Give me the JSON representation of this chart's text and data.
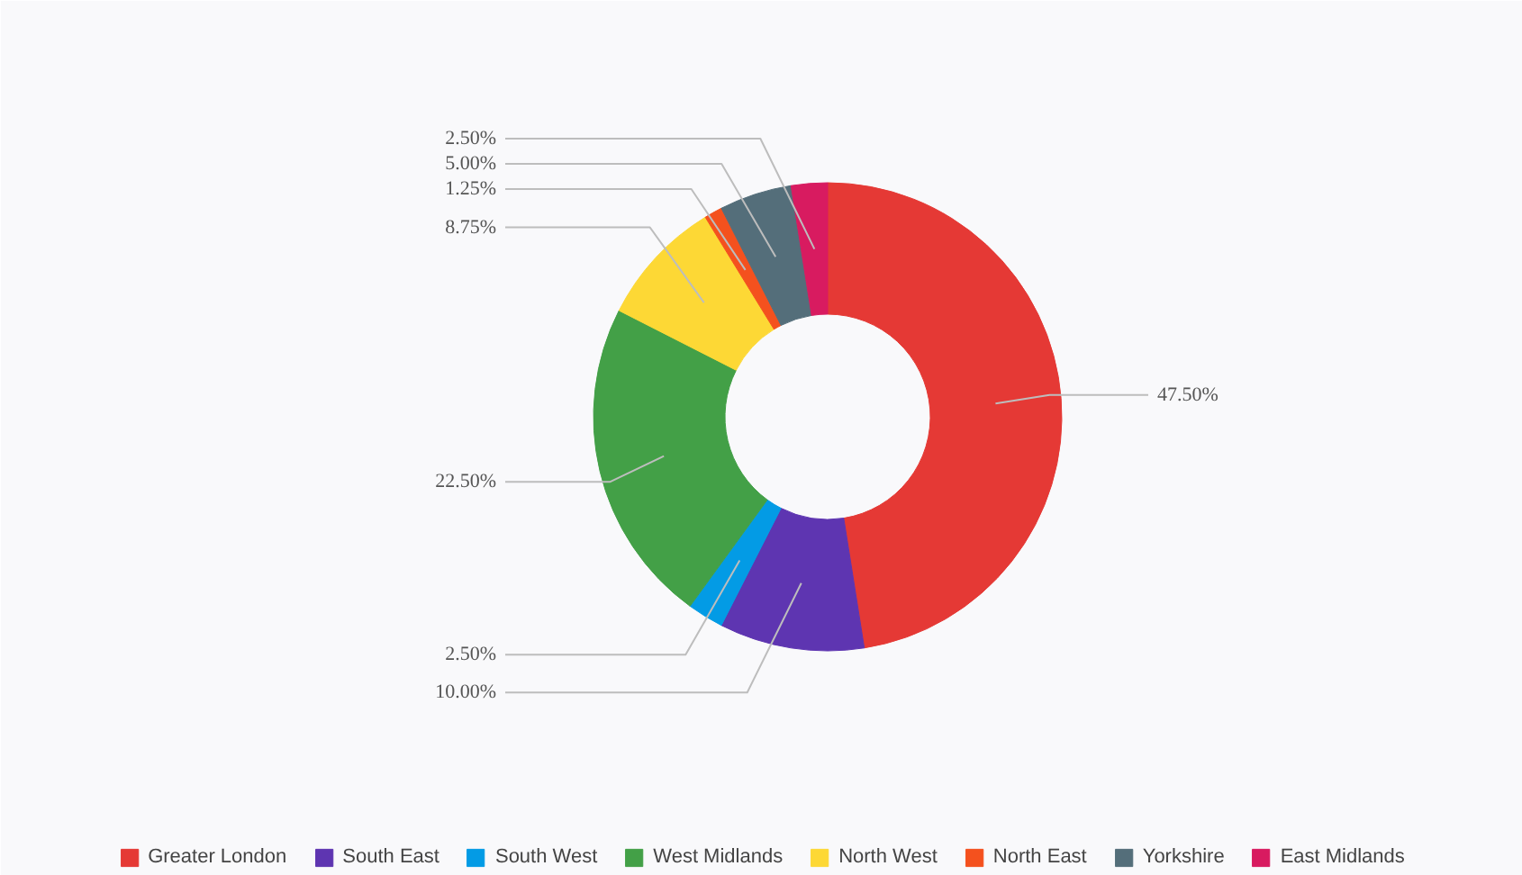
{
  "chart_data": {
    "type": "donut",
    "categories": [
      "Greater London",
      "South East",
      "South West",
      "West Midlands",
      "North West",
      "North East",
      "Yorkshire",
      "East Midlands"
    ],
    "values": [
      47.5,
      10,
      2.5,
      22.5,
      8.75,
      1.25,
      5,
      2.5
    ],
    "value_labels": [
      "47.50%",
      "10.00%",
      "2.50%",
      "22.50%",
      "8.75%",
      "1.25%",
      "5.00%",
      "2.50%"
    ],
    "colors": [
      "#e53935",
      "#5e35b1",
      "#039be5",
      "#43a047",
      "#fdd835",
      "#f4511e",
      "#546e7a",
      "#d81b60"
    ],
    "legend": "bottom"
  }
}
